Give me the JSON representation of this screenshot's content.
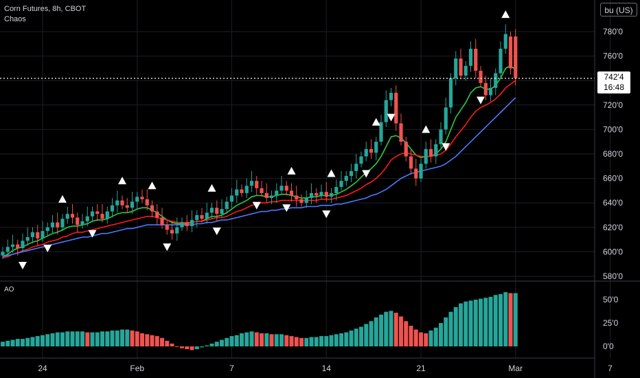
{
  "header": {
    "symbol": "Corn Futures, 8h, CBOT",
    "indicator": "Chaos"
  },
  "unit_button": "bu (US)",
  "last_price": {
    "value": "742'4",
    "countdown": "16:48",
    "price": 742.5
  },
  "ao_label": "AO",
  "colors": {
    "up": "#26a69a",
    "down": "#ef5350",
    "fast": "#2ecc40",
    "mid": "#ff1a1a",
    "slow": "#4a7bff",
    "grid": "#1c1f26",
    "axis_text": "#d1d4dc"
  },
  "chart_data": [
    {
      "type": "candlestick",
      "price_axis": {
        "ticks": [
          "780'0",
          "760'0",
          "740'0",
          "720'0",
          "700'0",
          "680'0",
          "660'0",
          "640'0",
          "620'0",
          "600'0",
          "580'0"
        ],
        "values": [
          780,
          760,
          740,
          720,
          700,
          680,
          660,
          640,
          620,
          600,
          580
        ]
      },
      "time_axis": {
        "ticks": [
          "24",
          "Feb",
          "7",
          "14",
          "21",
          "Mar",
          "7"
        ],
        "positions": [
          8,
          27,
          46,
          65,
          84,
          103,
          122
        ]
      },
      "candles_close": [
        600,
        604,
        606,
        603,
        609,
        612,
        616,
        611,
        617,
        620,
        624,
        620,
        627,
        631,
        628,
        622,
        625,
        629,
        633,
        631,
        627,
        633,
        638,
        642,
        638,
        636,
        641,
        645,
        643,
        638,
        633,
        628,
        622,
        618,
        615,
        620,
        624,
        621,
        626,
        630,
        627,
        632,
        636,
        631,
        635,
        641,
        646,
        651,
        648,
        654,
        658,
        652,
        648,
        644,
        646,
        650,
        654,
        650,
        646,
        643,
        640,
        644,
        648,
        646,
        649,
        645,
        648,
        653,
        658,
        662,
        666,
        672,
        678,
        684,
        681,
        690,
        706,
        724,
        730,
        705,
        690,
        678,
        668,
        660,
        672,
        684,
        678,
        688,
        700,
        718,
        742,
        758,
        744,
        752,
        766,
        748,
        738,
        728,
        734,
        746,
        766,
        778,
        750,
        742
      ],
      "candles_open": [
        597,
        600,
        604,
        606,
        603,
        609,
        612,
        616,
        611,
        617,
        620,
        624,
        620,
        627,
        631,
        628,
        622,
        625,
        629,
        633,
        631,
        627,
        633,
        638,
        642,
        638,
        636,
        641,
        645,
        643,
        638,
        633,
        628,
        622,
        618,
        615,
        620,
        624,
        621,
        626,
        630,
        627,
        632,
        636,
        631,
        635,
        641,
        646,
        651,
        648,
        654,
        658,
        652,
        648,
        644,
        646,
        650,
        654,
        650,
        646,
        643,
        640,
        644,
        648,
        646,
        649,
        645,
        648,
        653,
        658,
        662,
        666,
        672,
        678,
        684,
        681,
        690,
        706,
        724,
        730,
        705,
        690,
        678,
        668,
        660,
        672,
        684,
        678,
        688,
        700,
        718,
        742,
        758,
        744,
        752,
        766,
        748,
        738,
        728,
        734,
        746,
        766,
        776,
        776
      ],
      "series": [
        {
          "name": "",
          "role": "fast",
          "values": [
            596,
            598,
            601,
            603,
            604,
            606,
            608,
            609,
            611,
            613,
            615,
            616,
            618,
            620,
            621,
            621,
            622,
            623,
            625,
            626,
            626,
            627,
            629,
            631,
            632,
            632,
            633,
            635,
            636,
            636,
            634,
            632,
            629,
            626,
            624,
            623,
            623,
            623,
            624,
            625,
            625,
            627,
            629,
            629,
            630,
            632,
            635,
            638,
            640,
            642,
            645,
            646,
            646,
            645,
            645,
            646,
            647,
            647,
            646,
            645,
            644,
            644,
            645,
            645,
            646,
            646,
            646,
            647,
            649,
            651,
            654,
            657,
            661,
            665,
            668,
            672,
            678,
            686,
            694,
            695,
            693,
            689,
            684,
            679,
            677,
            678,
            678,
            680,
            684,
            690,
            700,
            710,
            716,
            722,
            730,
            734,
            735,
            733,
            733,
            736,
            742,
            750,
            752,
            749
          ]
        },
        {
          "name": "",
          "role": "mid",
          "values": [
            595,
            596,
            598,
            599,
            601,
            602,
            604,
            605,
            606,
            608,
            609,
            610,
            612,
            613,
            615,
            616,
            616,
            617,
            618,
            619,
            620,
            621,
            622,
            623,
            624,
            625,
            626,
            627,
            628,
            629,
            629,
            628,
            627,
            626,
            625,
            624,
            624,
            624,
            624,
            625,
            625,
            626,
            627,
            628,
            628,
            629,
            631,
            633,
            634,
            636,
            638,
            639,
            640,
            640,
            641,
            641,
            642,
            642,
            642,
            642,
            642,
            642,
            642,
            642,
            643,
            643,
            643,
            644,
            645,
            646,
            648,
            650,
            652,
            655,
            657,
            660,
            664,
            669,
            675,
            678,
            680,
            681,
            680,
            679,
            678,
            678,
            678,
            679,
            680,
            683,
            688,
            694,
            699,
            704,
            710,
            715,
            718,
            720,
            722,
            725,
            729,
            734,
            737,
            740
          ]
        },
        {
          "name": "",
          "role": "slow",
          "values": [
            596,
            597,
            598,
            599,
            600,
            601,
            602,
            603,
            604,
            605,
            606,
            607,
            608,
            609,
            610,
            611,
            612,
            612,
            613,
            614,
            615,
            615,
            616,
            617,
            618,
            619,
            619,
            620,
            621,
            622,
            622,
            622,
            622,
            622,
            622,
            622,
            622,
            622,
            622,
            623,
            623,
            624,
            624,
            625,
            626,
            626,
            627,
            628,
            629,
            630,
            631,
            632,
            633,
            633,
            634,
            634,
            635,
            635,
            636,
            636,
            636,
            637,
            637,
            637,
            638,
            638,
            638,
            639,
            639,
            640,
            641,
            642,
            643,
            644,
            646,
            647,
            649,
            651,
            654,
            657,
            660,
            662,
            664,
            665,
            666,
            667,
            668,
            669,
            670,
            672,
            675,
            678,
            682,
            686,
            690,
            694,
            698,
            702,
            706,
            710,
            714,
            718,
            722,
            726
          ]
        }
      ],
      "fractals_up": [
        12,
        24,
        30,
        42,
        58,
        66,
        75,
        85,
        101,
        109,
        122
      ],
      "fractals_down": [
        4,
        9,
        18,
        33,
        43,
        51,
        57,
        65,
        73,
        78,
        89,
        96,
        107,
        120
      ]
    },
    {
      "type": "bar",
      "title": "",
      "y_axis": {
        "ticks": [
          "50'0",
          "25'0",
          "0'0"
        ],
        "values": [
          50,
          25,
          0
        ]
      },
      "values": [
        5,
        6,
        7,
        8,
        8,
        9,
        10,
        11,
        12,
        13,
        14,
        15,
        15,
        16,
        16,
        16,
        16,
        15,
        15,
        15,
        16,
        16,
        17,
        17,
        18,
        18,
        17,
        16,
        14,
        13,
        12,
        11,
        9,
        6,
        3,
        0,
        -2,
        -3,
        -4,
        -3,
        -1,
        1,
        3,
        5,
        7,
        9,
        11,
        12,
        14,
        15,
        16,
        15,
        14,
        14,
        13,
        13,
        13,
        12,
        11,
        10,
        9,
        9,
        10,
        10,
        11,
        11,
        12,
        13,
        14,
        15,
        17,
        19,
        21,
        24,
        27,
        31,
        34,
        37,
        38,
        36,
        32,
        27,
        22,
        18,
        15,
        14,
        17,
        20,
        25,
        31,
        37,
        42,
        46,
        48,
        49,
        50,
        51,
        52,
        53,
        55,
        56,
        58,
        57,
        57
      ],
      "colors_by_trend": true
    }
  ]
}
